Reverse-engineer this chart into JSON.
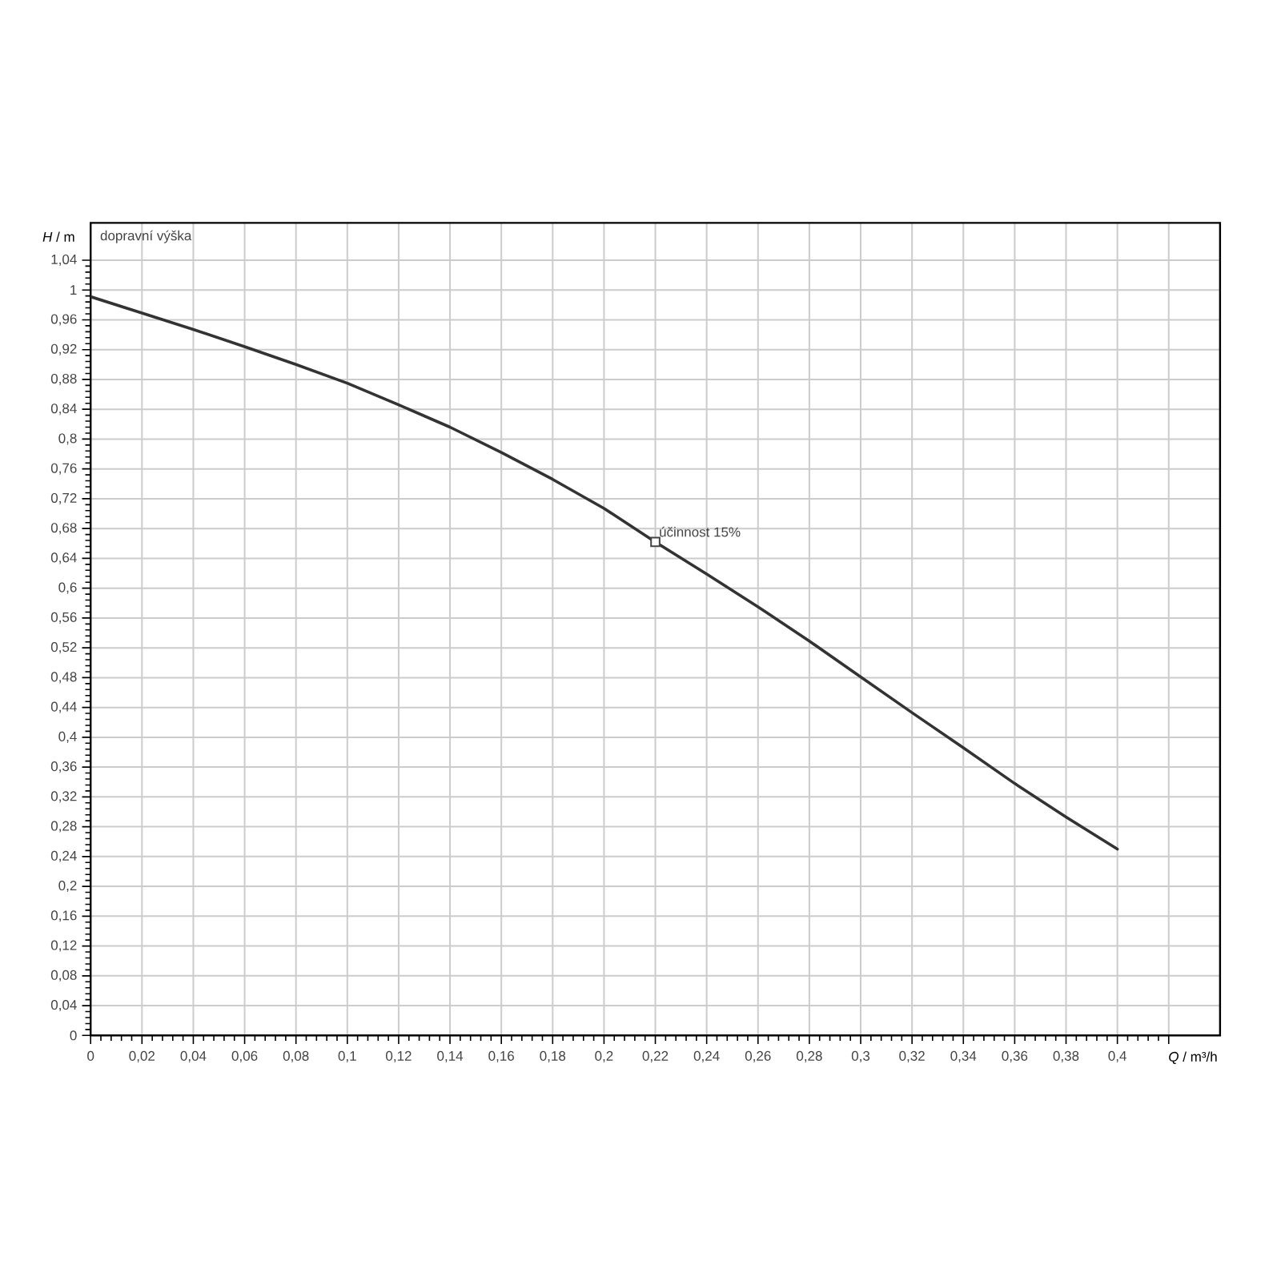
{
  "chart_data": {
    "type": "line",
    "xlabel": "*Q* / m³/h",
    "ylabel": "*H* / m",
    "annotations": [
      "dopravní výška",
      {
        "text": "účinnost 15%",
        "x": 0.22,
        "y": 0.662
      }
    ],
    "x": [
      0,
      0.02,
      0.04,
      0.06,
      0.08,
      0.1,
      0.12,
      0.14,
      0.16,
      0.18,
      0.2,
      0.22,
      0.24,
      0.26,
      0.28,
      0.3,
      0.32,
      0.34,
      0.36,
      0.38,
      0.4
    ],
    "series": [
      {
        "color": "#333333",
        "values": [
          0.991,
          0.969,
          0.947,
          0.924,
          0.9,
          0.875,
          0.846,
          0.816,
          0.782,
          0.746,
          0.707,
          0.662,
          0.619,
          0.575,
          0.529,
          0.481,
          0.433,
          0.386,
          0.338,
          0.293,
          0.25
        ]
      }
    ],
    "xlim": [
      0,
      0.44
    ],
    "ylim": [
      0,
      1.09
    ],
    "xticks": [
      0,
      {
        "value": 0.02,
        "label": "0,02"
      },
      {
        "value": 0.04,
        "label": "0,04"
      },
      {
        "value": 0.06,
        "label": "0,06"
      },
      {
        "value": 0.08,
        "label": "0,08"
      },
      {
        "value": 0.1,
        "label": "0,1"
      },
      {
        "value": 0.12,
        "label": "0,12"
      },
      {
        "value": 0.14,
        "label": "0,14"
      },
      {
        "value": 0.16,
        "label": "0,16"
      },
      {
        "value": 0.18,
        "label": "0,18"
      },
      {
        "value": 0.2,
        "label": "0,2"
      },
      {
        "value": 0.22,
        "label": "0,22"
      },
      {
        "value": 0.24,
        "label": "0,24"
      },
      {
        "value": 0.26,
        "label": "0,26"
      },
      {
        "value": 0.28,
        "label": "0,28"
      },
      {
        "value": 0.3,
        "label": "0,3"
      },
      {
        "value": 0.32,
        "label": "0,32"
      },
      {
        "value": 0.34,
        "label": "0,34"
      },
      {
        "value": 0.36,
        "label": "0,36"
      },
      {
        "value": 0.38,
        "label": "0,38"
      },
      {
        "value": 0.4,
        "label": "0,4"
      },
      {
        "value": 0.42,
        "label": null
      }
    ],
    "yticks": [
      0,
      {
        "value": 0.04,
        "label": "0,04"
      },
      {
        "value": 0.08,
        "label": "0,08"
      },
      {
        "value": 0.12,
        "label": "0,12"
      },
      {
        "value": 0.16,
        "label": "0,16"
      },
      {
        "value": 0.2,
        "label": "0,2"
      },
      {
        "value": 0.24,
        "label": "0,24"
      },
      {
        "value": 0.28,
        "label": "0,28"
      },
      {
        "value": 0.32,
        "label": "0,32"
      },
      {
        "value": 0.36,
        "label": "0,36"
      },
      {
        "value": 0.4,
        "label": "0,4"
      },
      {
        "value": 0.44,
        "label": "0,44"
      },
      {
        "value": 0.48,
        "label": "0,48"
      },
      {
        "value": 0.52,
        "label": "0,52"
      },
      {
        "value": 0.56,
        "label": "0,56"
      },
      {
        "value": 0.6,
        "label": "0,6"
      },
      {
        "value": 0.64,
        "label": "0,64"
      },
      {
        "value": 0.68,
        "label": "0,68"
      },
      {
        "value": 0.72,
        "label": "0,72"
      },
      {
        "value": 0.76,
        "label": "0,76"
      },
      {
        "value": 0.8,
        "label": "0,8"
      },
      {
        "value": 0.84,
        "label": "0,84"
      },
      {
        "value": 0.88,
        "label": "0,88"
      },
      {
        "value": 0.92,
        "label": "0,92"
      },
      {
        "value": 0.96,
        "label": "0,96"
      },
      1,
      {
        "value": 1.04,
        "label": "1,04"
      }
    ],
    "grid": true
  }
}
